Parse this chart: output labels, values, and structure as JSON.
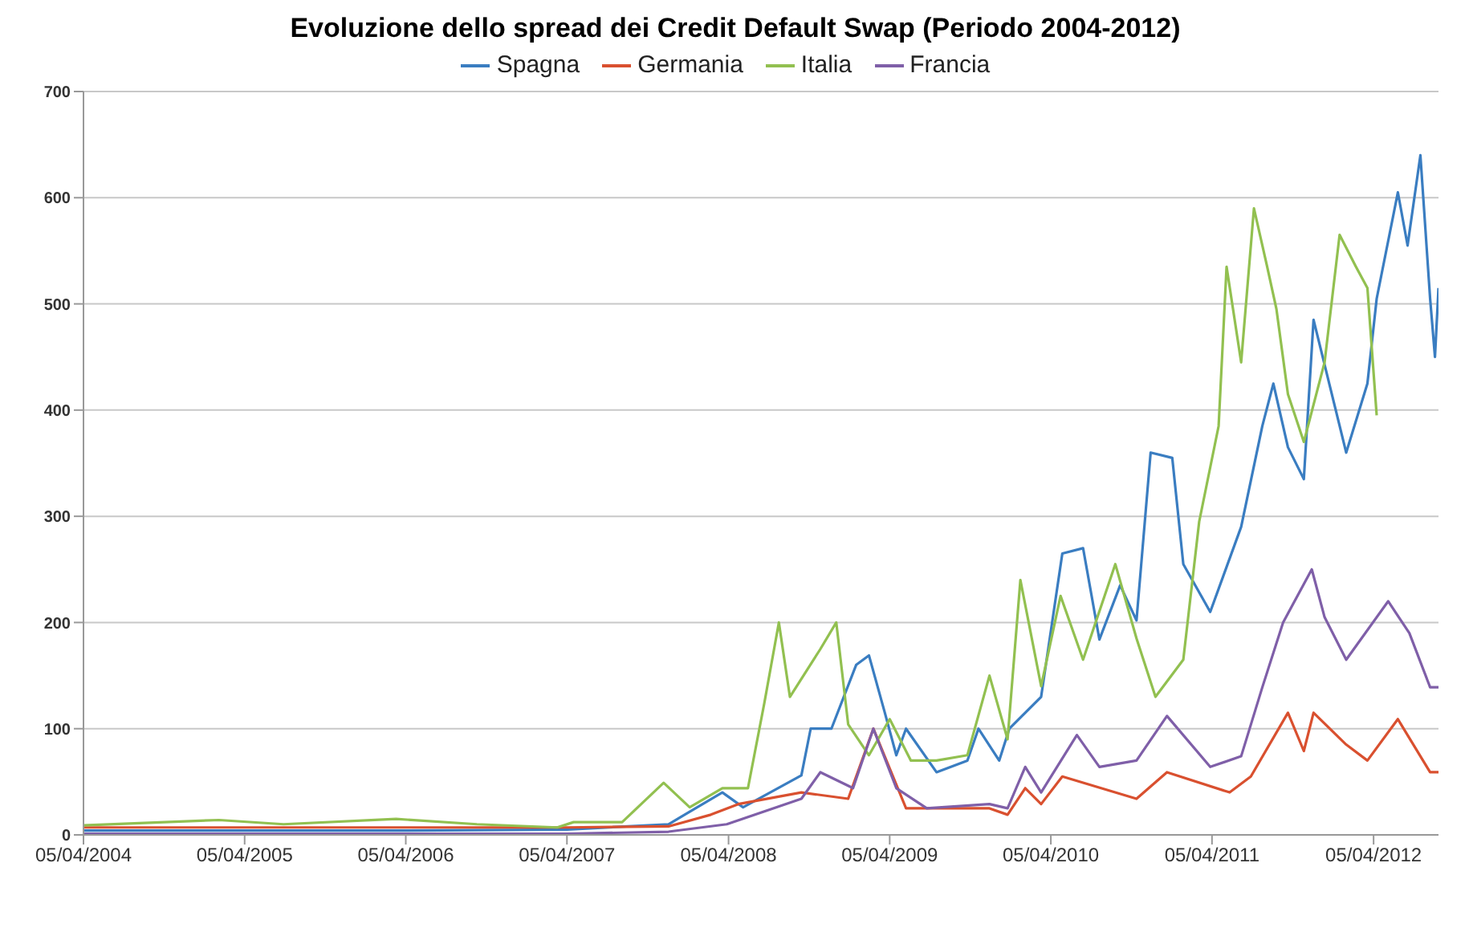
{
  "chart_data": {
    "type": "line",
    "title": "Evoluzione dello spread dei Credit Default Swap (Periodo 2004-2012)",
    "legend": "top",
    "grid": "y",
    "marker": "none",
    "xlim": [
      "2004-04-05",
      "2012-08-30"
    ],
    "xticks": [
      {
        "value": "2004-04-05",
        "label": "05/04/2004"
      },
      {
        "value": "2005-04-05",
        "label": "05/04/2005"
      },
      {
        "value": "2006-04-05",
        "label": "05/04/2006"
      },
      {
        "value": "2007-04-05",
        "label": "05/04/2007"
      },
      {
        "value": "2008-04-05",
        "label": "05/04/2008"
      },
      {
        "value": "2009-04-05",
        "label": "05/04/2009"
      },
      {
        "value": "2010-04-05",
        "label": "05/04/2010"
      },
      {
        "value": "2011-04-05",
        "label": "05/04/2011"
      },
      {
        "value": "2012-04-05",
        "label": "05/04/2012"
      }
    ],
    "ylim": [
      0,
      700
    ],
    "yticks": [
      0,
      100,
      200,
      300,
      400,
      500,
      600,
      700
    ],
    "series": [
      {
        "name": "Spagna",
        "color": "#3a7dc1",
        "x": [
          "2004-04-05",
          "2005-04-05",
          "2006-04-05",
          "2007-04-05",
          "2007-11-21",
          "2008-03-22",
          "2008-05-08",
          "2008-09-17",
          "2008-10-08",
          "2008-11-24",
          "2009-01-19",
          "2009-02-17",
          "2009-03-25",
          "2009-04-20",
          "2009-05-12",
          "2009-07-20",
          "2009-09-28",
          "2009-10-23",
          "2009-12-09",
          "2010-01-01",
          "2010-02-06",
          "2010-03-14",
          "2010-05-01",
          "2010-06-17",
          "2010-07-24",
          "2010-09-09",
          "2010-10-16",
          "2010-11-17",
          "2011-01-05",
          "2011-01-30",
          "2011-04-01",
          "2011-06-10",
          "2011-07-28",
          "2011-08-22",
          "2011-09-24",
          "2011-10-30",
          "2011-11-21",
          "2012-02-03",
          "2012-03-22",
          "2012-04-12",
          "2012-05-30",
          "2012-06-21",
          "2012-07-20",
          "2012-08-11",
          "2012-08-22",
          "2012-08-30"
        ],
        "values": [
          4,
          4,
          4,
          5,
          10,
          40,
          26,
          56,
          100,
          100,
          160,
          169,
          115,
          75,
          100,
          59,
          70,
          100,
          70,
          100,
          115,
          130,
          265,
          270,
          184,
          235,
          202,
          360,
          355,
          255,
          210,
          290,
          385,
          425,
          365,
          335,
          485,
          360,
          425,
          505,
          605,
          555,
          640,
          505,
          450,
          515
        ]
      },
      {
        "name": "Germania",
        "color": "#d9502f",
        "x": [
          "2004-04-05",
          "2005-04-05",
          "2006-04-05",
          "2007-04-05",
          "2007-11-21",
          "2008-02-25",
          "2008-04-27",
          "2008-09-17",
          "2009-01-01",
          "2009-02-27",
          "2009-05-12",
          "2009-11-17",
          "2009-12-28",
          "2010-02-06",
          "2010-03-14",
          "2010-05-01",
          "2010-10-16",
          "2010-12-24",
          "2011-05-15",
          "2011-07-02",
          "2011-09-24",
          "2011-10-30",
          "2011-11-21",
          "2012-02-03",
          "2012-03-22",
          "2012-05-30",
          "2012-08-11",
          "2012-08-30"
        ],
        "values": [
          7,
          7,
          7,
          7,
          8,
          19,
          29,
          40,
          34,
          100,
          25,
          25,
          19,
          44,
          29,
          55,
          34,
          59,
          40,
          55,
          115,
          79,
          115,
          85,
          70,
          109,
          59,
          59
        ]
      },
      {
        "name": "Italia",
        "color": "#92c050",
        "x": [
          "2004-04-05",
          "2005-02-06",
          "2005-07-02",
          "2006-03-14",
          "2006-09-13",
          "2007-03-14",
          "2007-04-20",
          "2007-08-08",
          "2007-11-10",
          "2008-01-08",
          "2008-03-22",
          "2008-05-19",
          "2008-06-25",
          "2008-07-28",
          "2008-08-22",
          "2008-10-30",
          "2008-12-05",
          "2009-01-01",
          "2009-02-17",
          "2009-04-05",
          "2009-05-23",
          "2009-07-20",
          "2009-09-28",
          "2009-11-17",
          "2009-12-28",
          "2010-01-26",
          "2010-03-14",
          "2010-04-27",
          "2010-06-17",
          "2010-08-29",
          "2010-10-16",
          "2010-11-28",
          "2011-01-30",
          "2011-03-07",
          "2011-04-20",
          "2011-05-08",
          "2011-06-10",
          "2011-07-09",
          "2011-08-08",
          "2011-08-29",
          "2011-09-24",
          "2011-10-30",
          "2011-12-16",
          "2012-01-19",
          "2012-02-25",
          "2012-03-22",
          "2012-04-12"
        ],
        "values": [
          9,
          14,
          10,
          15,
          10,
          7,
          12,
          12,
          49,
          26,
          44,
          44,
          124,
          200,
          130,
          175,
          200,
          104,
          75,
          109,
          70,
          70,
          75,
          150,
          90,
          240,
          140,
          225,
          165,
          255,
          185,
          130,
          165,
          295,
          385,
          535,
          445,
          590,
          535,
          495,
          415,
          370,
          445,
          565,
          535,
          515,
          395
        ]
      },
      {
        "name": "Francia",
        "color": "#7f5fa8",
        "x": [
          "2004-04-05",
          "2005-04-05",
          "2006-04-05",
          "2007-04-05",
          "2007-11-21",
          "2008-04-01",
          "2008-09-17",
          "2008-10-30",
          "2009-01-12",
          "2009-02-27",
          "2009-04-20",
          "2009-06-28",
          "2009-11-17",
          "2009-12-28",
          "2010-02-06",
          "2010-03-14",
          "2010-06-03",
          "2010-07-24",
          "2010-10-16",
          "2010-12-24",
          "2011-04-01",
          "2011-06-10",
          "2011-07-28",
          "2011-09-13",
          "2011-11-17",
          "2011-12-16",
          "2012-02-03",
          "2012-05-08",
          "2012-06-25",
          "2012-08-11",
          "2012-08-30"
        ],
        "values": [
          1,
          1,
          1,
          1,
          3,
          10,
          34,
          59,
          44,
          100,
          44,
          25,
          29,
          25,
          64,
          40,
          94,
          64,
          70,
          112,
          64,
          74,
          139,
          200,
          250,
          205,
          165,
          220,
          190,
          139,
          139
        ]
      }
    ]
  }
}
